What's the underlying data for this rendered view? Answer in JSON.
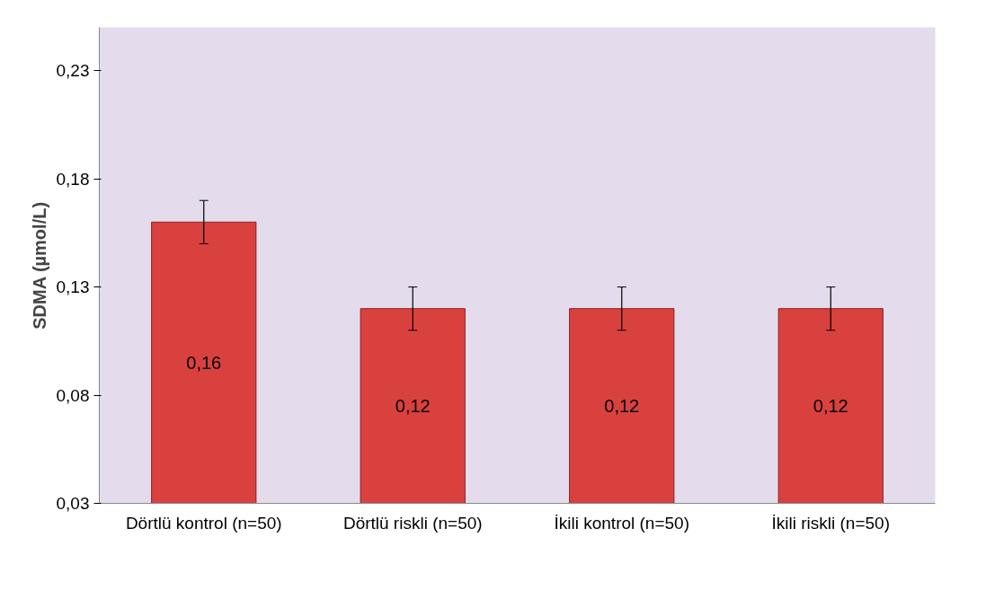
{
  "chart_data": {
    "type": "bar",
    "ylabel": "SDMA (µmol/L)",
    "categories": [
      "Dörtlü kontrol (n=50)",
      "Dörtlü riskli (n=50)",
      "İkili kontrol (n=50)",
      "İkili riskli (n=50)"
    ],
    "values": [
      0.16,
      0.12,
      0.12,
      0.12
    ],
    "errors": [
      0.01,
      0.01,
      0.01,
      0.01
    ],
    "value_labels": [
      "0,16",
      "0,12",
      "0,12",
      "0,12"
    ],
    "color": "#d9413f",
    "ylim": [
      0.03,
      0.25
    ],
    "yticks": [
      {
        "value": 0.03,
        "label": "0,03"
      },
      {
        "value": 0.08,
        "label": "0,08"
      },
      {
        "value": 0.13,
        "label": "0,13"
      },
      {
        "value": 0.18,
        "label": "0,18"
      },
      {
        "value": 0.23,
        "label": "0,23"
      }
    ],
    "grid": false
  }
}
